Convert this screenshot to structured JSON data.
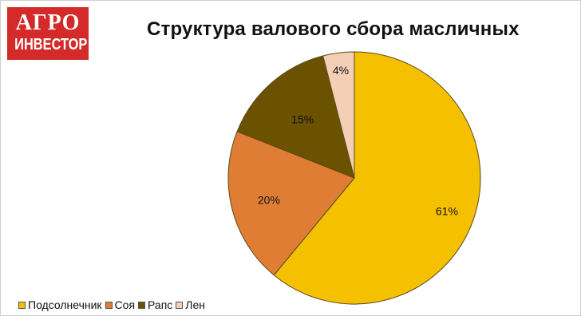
{
  "logo": {
    "line1": "АГРО",
    "line2": "ИНВЕСТОР"
  },
  "chart_data": {
    "type": "pie",
    "title": "Структура валового сбора масличных",
    "categories": [
      "Подсолнечник",
      "Соя",
      "Рапс",
      "Лен"
    ],
    "values": [
      61,
      20,
      15,
      4
    ],
    "labels": [
      "61%",
      "20%",
      "15%",
      "4%"
    ],
    "colors": [
      "#f5c000",
      "#e07d34",
      "#6b5200",
      "#f5cfb5"
    ],
    "start_angle_deg": 0,
    "direction": "clockwise",
    "legend_position": "bottom-left"
  }
}
